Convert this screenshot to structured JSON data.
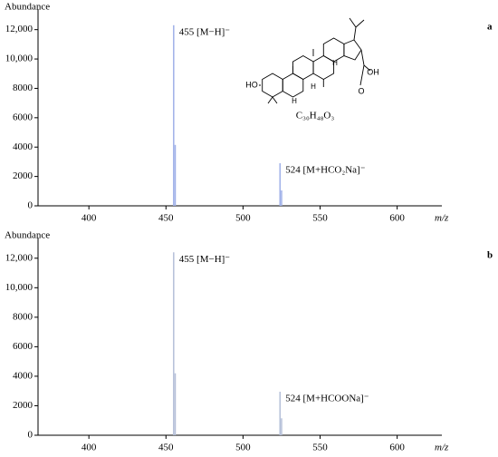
{
  "chart_data": [
    {
      "type": "stem",
      "panel_label": "a",
      "ylabel": "Abundance",
      "xlabel": "m/z",
      "color": "#9fb0e8",
      "x": [
        455,
        456,
        524,
        525
      ],
      "values": [
        12300,
        4150,
        2900,
        1050
      ],
      "annotations": [
        "455 [M−H]⁻",
        "524 [M+HCO₂Na]⁻"
      ],
      "structure": {
        "formula": "C₃₀H₄₈O₃",
        "labels": [
          "HO",
          "OH",
          "O",
          "H",
          "H",
          "H"
        ]
      },
      "xlim": [
        367,
        629
      ],
      "xticks": [
        400,
        450,
        500,
        550,
        600
      ],
      "ylim": [
        0,
        13400
      ],
      "yticks": [
        0,
        2000,
        4000,
        6000,
        8000,
        {
          "value": 10000,
          "label": "10,000"
        },
        {
          "value": 12000,
          "label": "12,000"
        }
      ]
    },
    {
      "type": "stem",
      "panel_label": "b",
      "ylabel": "Abundance",
      "xlabel": "m/z",
      "color": "#b4bfd8",
      "x": [
        455,
        456,
        524,
        525
      ],
      "values": [
        12400,
        4200,
        2950,
        1150
      ],
      "annotations": [
        "455 [M−H]⁻",
        "524 [M+HCOONa]⁻"
      ],
      "xlim": [
        367,
        629
      ],
      "xticks": [
        400,
        450,
        500,
        550,
        600
      ],
      "ylim": [
        0,
        13400
      ],
      "yticks": [
        0,
        2000,
        4000,
        6000,
        8000,
        {
          "value": 10000,
          "label": "10,000"
        },
        {
          "value": 12000,
          "label": "12,000"
        }
      ]
    }
  ]
}
